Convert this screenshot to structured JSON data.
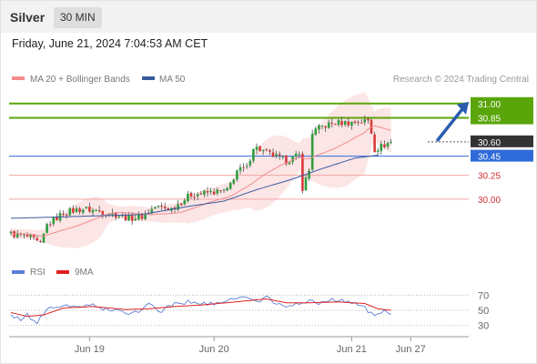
{
  "header": {
    "symbol": "Silver",
    "timeframe": "30 MIN",
    "datetime": "Friday, June 21, 2024 7:04:53 AM CET"
  },
  "legend": {
    "bb": {
      "label": "MA 20 + Bollinger Bands",
      "color": "#f28c8c"
    },
    "ma50": {
      "label": "MA 50",
      "color": "#3a5a9e"
    },
    "credit": "Research © 2024 Trading Central"
  },
  "rsi_legend": {
    "rsi": {
      "label": "RSI",
      "color": "#5b7fd6"
    },
    "ma9": {
      "label": "9MA",
      "color": "#e02020"
    }
  },
  "chart_data": {
    "type": "candlestick",
    "y_range": [
      29.4,
      31.15
    ],
    "x_labels": [
      {
        "label": "Jun 19",
        "bar": 24
      },
      {
        "label": "Jun 20",
        "bar": 62
      },
      {
        "label": "Jun 21",
        "bar": 104
      },
      {
        "label": "Jun 27",
        "bar": 122
      }
    ],
    "levels": [
      {
        "value": 31.0,
        "label": "31.00",
        "color": "#5aa50a",
        "style": "resistance-green"
      },
      {
        "value": 30.85,
        "label": "30.85",
        "color": "#5aa50a",
        "style": "resistance-green"
      },
      {
        "value": 30.6,
        "label": "30.60",
        "color": "#333333",
        "style": "pivot-dark"
      },
      {
        "value": 30.45,
        "label": "30.45",
        "color": "#2f6bd8",
        "style": "pivot-blue"
      },
      {
        "value": 30.25,
        "label": "30.25",
        "color": "#d03030",
        "style": "support-red"
      },
      {
        "value": 30.0,
        "label": "30.00",
        "color": "#d03030",
        "style": "support-red"
      }
    ],
    "anchors": [
      [
        0,
        29.64
      ],
      [
        6,
        29.6
      ],
      [
        9,
        29.52
      ],
      [
        11,
        29.73
      ],
      [
        13,
        29.78
      ],
      [
        16,
        29.86
      ],
      [
        22,
        29.9
      ],
      [
        30,
        29.86
      ],
      [
        36,
        29.8
      ],
      [
        40,
        29.82
      ],
      [
        44,
        29.92
      ],
      [
        49,
        29.9
      ],
      [
        55,
        30.05
      ],
      [
        61,
        30.07
      ],
      [
        66,
        30.09
      ],
      [
        69,
        30.3
      ],
      [
        72,
        30.32
      ],
      [
        74,
        30.55
      ],
      [
        79,
        30.47
      ],
      [
        84,
        30.4
      ],
      [
        88,
        30.46
      ],
      [
        89,
        30.12
      ],
      [
        91,
        30.3
      ],
      [
        92,
        30.7
      ],
      [
        95,
        30.76
      ],
      [
        99,
        30.8
      ],
      [
        103,
        30.8
      ],
      [
        109,
        30.82
      ],
      [
        110,
        30.7
      ],
      [
        111,
        30.52
      ],
      [
        116,
        30.6
      ]
    ],
    "ma50_path": [
      [
        0,
        29.8
      ],
      [
        20,
        29.82
      ],
      [
        40,
        29.84
      ],
      [
        55,
        29.93
      ],
      [
        65,
        29.98
      ],
      [
        75,
        30.1
      ],
      [
        85,
        30.2
      ],
      [
        95,
        30.32
      ],
      [
        105,
        30.43
      ],
      [
        112,
        30.46
      ]
    ],
    "rsi": {
      "range": [
        20,
        80
      ],
      "ticks": [
        70,
        50,
        30
      ],
      "anchors": [
        [
          0,
          42
        ],
        [
          3,
          38
        ],
        [
          5,
          44
        ],
        [
          8,
          33
        ],
        [
          11,
          52
        ],
        [
          14,
          56
        ],
        [
          18,
          54
        ],
        [
          24,
          57
        ],
        [
          30,
          50
        ],
        [
          36,
          47
        ],
        [
          40,
          51
        ],
        [
          43,
          60
        ],
        [
          45,
          48
        ],
        [
          50,
          58
        ],
        [
          56,
          62
        ],
        [
          60,
          58
        ],
        [
          64,
          58
        ],
        [
          67,
          66
        ],
        [
          70,
          68
        ],
        [
          73,
          64
        ],
        [
          76,
          61
        ],
        [
          78,
          69
        ],
        [
          81,
          57
        ],
        [
          84,
          55
        ],
        [
          87,
          58
        ],
        [
          90,
          62
        ],
        [
          94,
          60
        ],
        [
          98,
          64
        ],
        [
          103,
          61
        ],
        [
          107,
          58
        ],
        [
          110,
          45
        ],
        [
          112,
          43
        ],
        [
          114,
          48
        ],
        [
          116,
          45
        ]
      ],
      "ma_anchors": [
        [
          0,
          47
        ],
        [
          5,
          42
        ],
        [
          10,
          44
        ],
        [
          16,
          53
        ],
        [
          25,
          55
        ],
        [
          35,
          51
        ],
        [
          42,
          52
        ],
        [
          50,
          55
        ],
        [
          58,
          57
        ],
        [
          66,
          60
        ],
        [
          73,
          63
        ],
        [
          78,
          65
        ],
        [
          84,
          60
        ],
        [
          91,
          60
        ],
        [
          100,
          61
        ],
        [
          108,
          59
        ],
        [
          112,
          52
        ],
        [
          116,
          50
        ]
      ]
    }
  }
}
